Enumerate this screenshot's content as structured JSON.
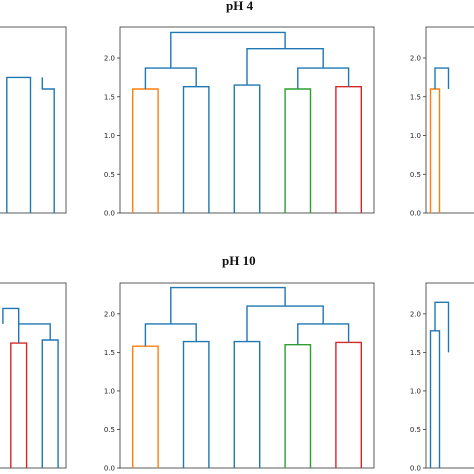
{
  "titles": {
    "top": "pH 4",
    "bottom": "pH 10"
  },
  "colors": {
    "axes": "#333333",
    "blue": "#1f77b4",
    "orange": "#ff7f0e",
    "green": "#2ca02c",
    "red": "#d62728",
    "link": "#1f77b4"
  },
  "chart_data": [
    {
      "type": "dendrogram",
      "title": "",
      "ylim": [
        0,
        2.4
      ],
      "yticks": [
        0.0,
        0.5,
        1.0,
        1.5,
        2.0
      ],
      "tick_labels_visible": false,
      "links": [
        {
          "x": [
            1,
            1,
            2,
            2
          ],
          "y": [
            0,
            1.75,
            1.75,
            0
          ],
          "color": "blue"
        },
        {
          "x": [
            2.5,
            2.5,
            3,
            3
          ],
          "y": [
            1.75,
            1.6,
            1.6,
            0
          ],
          "color": "blue"
        }
      ]
    },
    {
      "type": "dendrogram",
      "title": "pH 4",
      "ylim": [
        0,
        2.4
      ],
      "yticks": [
        0.0,
        0.5,
        1.0,
        1.5,
        2.0
      ],
      "tick_labels_visible": true,
      "links": [
        {
          "x": [
            5,
            5,
            15,
            15
          ],
          "y": [
            0,
            1.6,
            1.6,
            0
          ],
          "color": "orange"
        },
        {
          "x": [
            25,
            25,
            35,
            35
          ],
          "y": [
            0,
            1.63,
            1.63,
            0
          ],
          "color": "blue"
        },
        {
          "x": [
            45,
            45,
            55,
            55
          ],
          "y": [
            0,
            1.65,
            1.65,
            0
          ],
          "color": "blue"
        },
        {
          "x": [
            65,
            65,
            75,
            75
          ],
          "y": [
            0,
            1.6,
            1.6,
            0
          ],
          "color": "green"
        },
        {
          "x": [
            85,
            85,
            95,
            95
          ],
          "y": [
            0,
            1.63,
            1.63,
            0
          ],
          "color": "red"
        },
        {
          "x": [
            10,
            10,
            30,
            30
          ],
          "y": [
            1.6,
            1.87,
            1.87,
            1.63
          ],
          "color": "link"
        },
        {
          "x": [
            70,
            70,
            90,
            90
          ],
          "y": [
            1.6,
            1.87,
            1.87,
            1.63
          ],
          "color": "link"
        },
        {
          "x": [
            50,
            50,
            80,
            80
          ],
          "y": [
            1.65,
            2.12,
            2.12,
            1.87
          ],
          "color": "link"
        },
        {
          "x": [
            20,
            20,
            65,
            65
          ],
          "y": [
            1.87,
            2.33,
            2.33,
            2.12
          ],
          "color": "link"
        }
      ]
    },
    {
      "type": "dendrogram",
      "title": "",
      "ylim": [
        0,
        2.4
      ],
      "yticks": [
        0.0,
        0.5,
        1.0,
        1.5,
        2.0
      ],
      "tick_labels_visible": true,
      "links": [
        {
          "x": [
            5,
            5,
            15,
            15
          ],
          "y": [
            0,
            1.6,
            1.6,
            0
          ],
          "color": "orange"
        },
        {
          "x": [
            10,
            10,
            25,
            25
          ],
          "y": [
            1.6,
            1.87,
            1.87,
            1.6
          ],
          "color": "link"
        }
      ]
    },
    {
      "type": "dendrogram",
      "title": "",
      "ylim": [
        0,
        2.4
      ],
      "yticks": [
        0.0,
        0.5,
        1.0,
        1.5,
        2.0
      ],
      "tick_labels_visible": false,
      "links": [
        {
          "x": [
            1,
            1,
            2,
            2
          ],
          "y": [
            0,
            1.62,
            1.62,
            0
          ],
          "color": "red"
        },
        {
          "x": [
            3,
            3,
            4,
            4
          ],
          "y": [
            0,
            1.66,
            1.66,
            0
          ],
          "color": "blue"
        },
        {
          "x": [
            1.5,
            1.5,
            3.5,
            3.5
          ],
          "y": [
            1.62,
            1.87,
            1.87,
            1.66
          ],
          "color": "link"
        },
        {
          "x": [
            0.5,
            0.5,
            1.5,
            1.5
          ],
          "y": [
            1.87,
            2.07,
            2.07,
            1.87
          ],
          "color": "link"
        }
      ]
    },
    {
      "type": "dendrogram",
      "title": "pH 10",
      "ylim": [
        0,
        2.4
      ],
      "yticks": [
        0.0,
        0.5,
        1.0,
        1.5,
        2.0
      ],
      "tick_labels_visible": true,
      "links": [
        {
          "x": [
            5,
            5,
            15,
            15
          ],
          "y": [
            0,
            1.58,
            1.58,
            0
          ],
          "color": "orange"
        },
        {
          "x": [
            25,
            25,
            35,
            35
          ],
          "y": [
            0,
            1.64,
            1.64,
            0
          ],
          "color": "blue"
        },
        {
          "x": [
            45,
            45,
            55,
            55
          ],
          "y": [
            0,
            1.64,
            1.64,
            0
          ],
          "color": "blue"
        },
        {
          "x": [
            65,
            65,
            75,
            75
          ],
          "y": [
            0,
            1.6,
            1.6,
            0
          ],
          "color": "green"
        },
        {
          "x": [
            85,
            85,
            95,
            95
          ],
          "y": [
            0,
            1.63,
            1.63,
            0
          ],
          "color": "red"
        },
        {
          "x": [
            10,
            10,
            30,
            30
          ],
          "y": [
            1.58,
            1.87,
            1.87,
            1.64
          ],
          "color": "link"
        },
        {
          "x": [
            70,
            70,
            90,
            90
          ],
          "y": [
            1.6,
            1.87,
            1.87,
            1.63
          ],
          "color": "link"
        },
        {
          "x": [
            50,
            50,
            80,
            80
          ],
          "y": [
            1.64,
            2.1,
            2.1,
            1.87
          ],
          "color": "link"
        },
        {
          "x": [
            20,
            20,
            65,
            65
          ],
          "y": [
            1.87,
            2.34,
            2.34,
            2.1
          ],
          "color": "link"
        }
      ]
    },
    {
      "type": "dendrogram",
      "title": "",
      "ylim": [
        0,
        2.4
      ],
      "yticks": [
        0.0,
        0.5,
        1.0,
        1.5,
        2.0
      ],
      "tick_labels_visible": true,
      "links": [
        {
          "x": [
            5,
            5,
            15,
            15
          ],
          "y": [
            0,
            1.78,
            1.78,
            0
          ],
          "color": "blue"
        },
        {
          "x": [
            10,
            10,
            25,
            25
          ],
          "y": [
            1.78,
            2.15,
            2.15,
            1.5
          ],
          "color": "link"
        }
      ]
    }
  ]
}
